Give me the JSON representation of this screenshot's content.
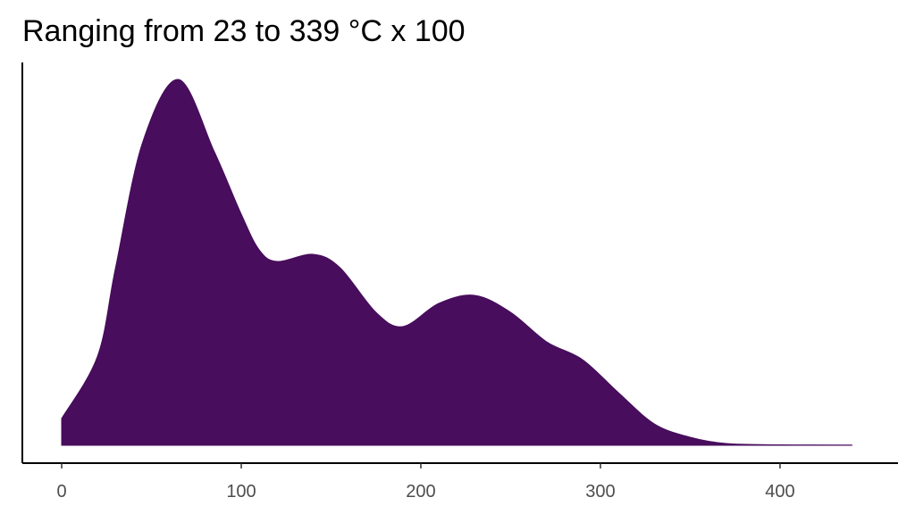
{
  "chart_data": {
    "type": "area",
    "title": "Ranging from 23 to 339 °C x 100",
    "x": [
      0,
      20,
      30,
      45,
      65,
      85,
      100,
      110,
      120,
      140,
      155,
      175,
      190,
      210,
      230,
      250,
      270,
      290,
      310,
      330,
      350,
      370,
      400,
      440
    ],
    "values": [
      0.0006,
      0.002,
      0.00398,
      0.00678,
      0.0082,
      0.00658,
      0.00518,
      0.00438,
      0.00412,
      0.00428,
      0.00398,
      0.00298,
      0.00266,
      0.00318,
      0.00336,
      0.00298,
      0.00232,
      0.00192,
      0.00118,
      0.00048,
      0.00018,
      4e-05,
      1e-05,
      6e-06
    ],
    "color": "#480d5c",
    "xlim": [
      -21.9,
      465.7
    ],
    "xticks": [
      0,
      100,
      200,
      300,
      400
    ],
    "ylim": [
      -0.0004,
      0.00858
    ]
  }
}
